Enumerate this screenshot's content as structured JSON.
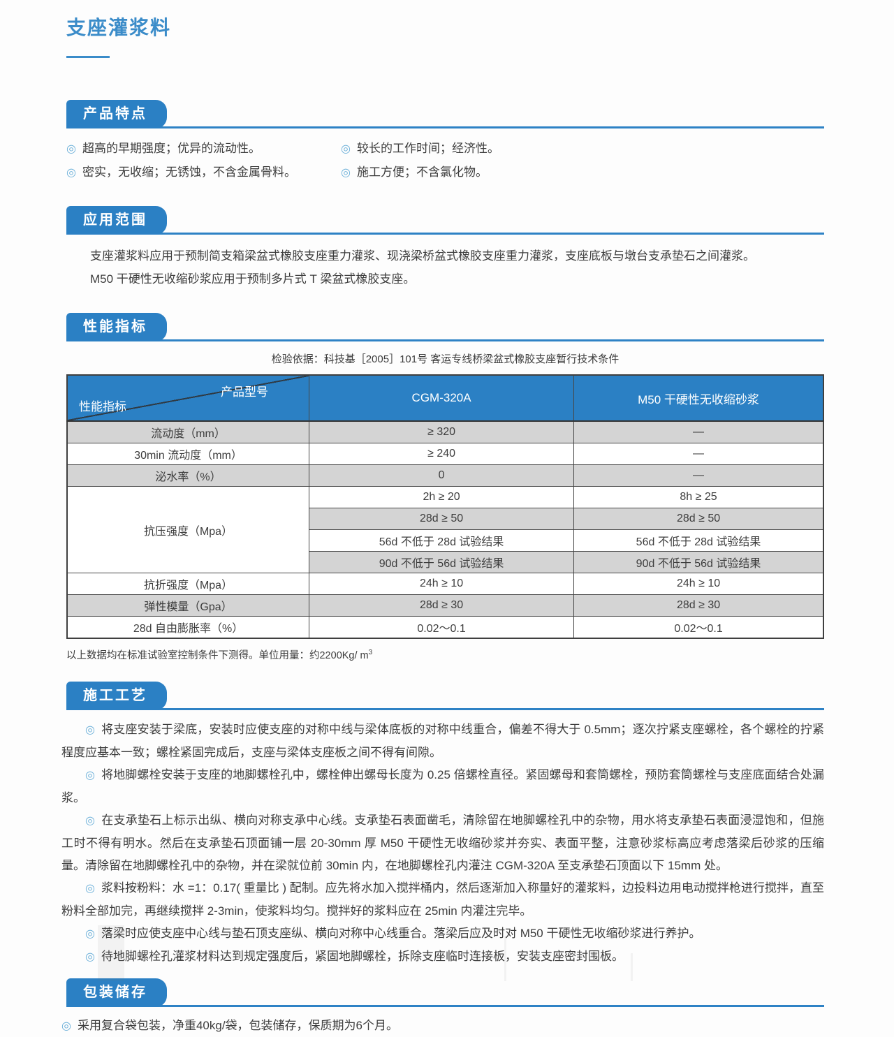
{
  "title": "支座灌浆料",
  "bullet_icon": "◎",
  "colors": {
    "accent_blue": "#2b80c4",
    "title_blue": "#3b8cc9",
    "row_gray": "#d4d4d4",
    "text": "#3d3d3d"
  },
  "sections": {
    "features": {
      "heading": "产品特点",
      "items": [
        "超高的早期强度；优异的流动性。",
        "较长的工作时间；经济性。",
        "密实，无收缩；无锈蚀，不含金属骨料。",
        "施工方便；不含氯化物。"
      ]
    },
    "application": {
      "heading": "应用范围",
      "lines": [
        "支座灌浆料应用于预制简支箱梁盆式橡胶支座重力灌浆、现浇梁桥盆式橡胶支座重力灌浆，支座底板与墩台支承垫石之间灌浆。",
        "M50 干硬性无收缩砂浆应用于预制多片式 T 梁盆式橡胶支座。"
      ]
    },
    "performance": {
      "heading": "性能指标",
      "basis": "检验依据：科技基［2005］101号 客运专线桥梁盆式橡胶支座暂行技术条件",
      "table": {
        "corner_top": "产品型号",
        "corner_bottom": "性能指标",
        "columns": [
          "CGM-320A",
          "M50 干硬性无收缩砂浆"
        ],
        "rows": [
          {
            "label": "流动度（mm）",
            "cells": [
              "≥ 320",
              "—"
            ],
            "shade": true
          },
          {
            "label": "30min 流动度（mm）",
            "cells": [
              "≥ 240",
              "—"
            ],
            "shade": false
          },
          {
            "label": "泌水率（%）",
            "cells": [
              "0",
              "—"
            ],
            "shade": true
          },
          {
            "label": "抗压强度（Mpa）",
            "subrows": [
              {
                "cells": [
                  "2h ≥ 20",
                  "8h ≥ 25"
                ],
                "shade": false
              },
              {
                "cells": [
                  "28d ≥ 50",
                  "28d ≥ 50"
                ],
                "shade": true
              },
              {
                "cells": [
                  "56d 不低于 28d 试验结果",
                  "56d 不低于 28d 试验结果"
                ],
                "shade": false
              },
              {
                "cells": [
                  "90d 不低于 56d 试验结果",
                  "90d 不低于 56d 试验结果"
                ],
                "shade": true
              }
            ]
          },
          {
            "label": "抗折强度（Mpa）",
            "cells": [
              "24h ≥ 10",
              "24h ≥ 10"
            ],
            "shade": false
          },
          {
            "label": "弹性模量（Gpa）",
            "cells": [
              "28d ≥ 30",
              "28d ≥ 30"
            ],
            "shade": true
          },
          {
            "label": "28d 自由膨胀率（%）",
            "cells": [
              "0.02～0.1",
              "0.02～0.1"
            ],
            "shade": false
          }
        ]
      },
      "footnote_main": "以上数据均在标准试验室控制条件下测得。单位用量：约2200Kg/ m",
      "footnote_sup": "3"
    },
    "process": {
      "heading": "施工工艺",
      "paragraphs": [
        "将支座安装于梁底，安装时应使支座的对称中线与梁体底板的对称中线重合，偏差不得大于 0.5mm；逐次拧紧支座螺栓，各个螺栓的拧紧程度应基本一致；螺栓紧固完成后，支座与梁体支座板之间不得有间隙。",
        "将地脚螺栓安装于支座的地脚螺栓孔中，螺栓伸出螺母长度为 0.25 倍螺栓直径。紧固螺母和套筒螺栓，预防套筒螺栓与支座底面结合处漏浆。",
        "在支承垫石上标示出纵、横向对称支承中心线。支承垫石表面凿毛，清除留在地脚螺栓孔中的杂物，用水将支承垫石表面浸湿饱和，但施工时不得有明水。然后在支承垫石顶面铺一层 20-30mm 厚 M50 干硬性无收缩砂浆并夯实、表面平整，注意砂浆标高应考虑落梁后砂浆的压缩量。清除留在地脚螺栓孔中的杂物，并在梁就位前 30min 内，在地脚螺栓孔内灌注 CGM-320A 至支承垫石顶面以下 15mm 处。",
        "浆料按粉料：水 =1：0.17( 重量比 ) 配制。应先将水加入搅拌桶内，然后逐渐加入称量好的灌浆料，边投料边用电动搅拌枪进行搅拌，直至粉料全部加完，再继续搅拌 2-3min，使浆料均匀。搅拌好的浆料应在 25min 内灌注完毕。",
        "落梁时应使支座中心线与垫石顶支座纵、横向对称中心线重合。落梁后应及时对 M50 干硬性无收缩砂浆进行养护。",
        "待地脚螺栓孔灌浆材料达到规定强度后，紧固地脚螺栓，拆除支座临时连接板，安装支座密封围板。"
      ]
    },
    "packaging": {
      "heading": "包装储存",
      "line": "采用复合袋包装，净重40kg/袋，包装储存，保质期为6个月。"
    }
  }
}
